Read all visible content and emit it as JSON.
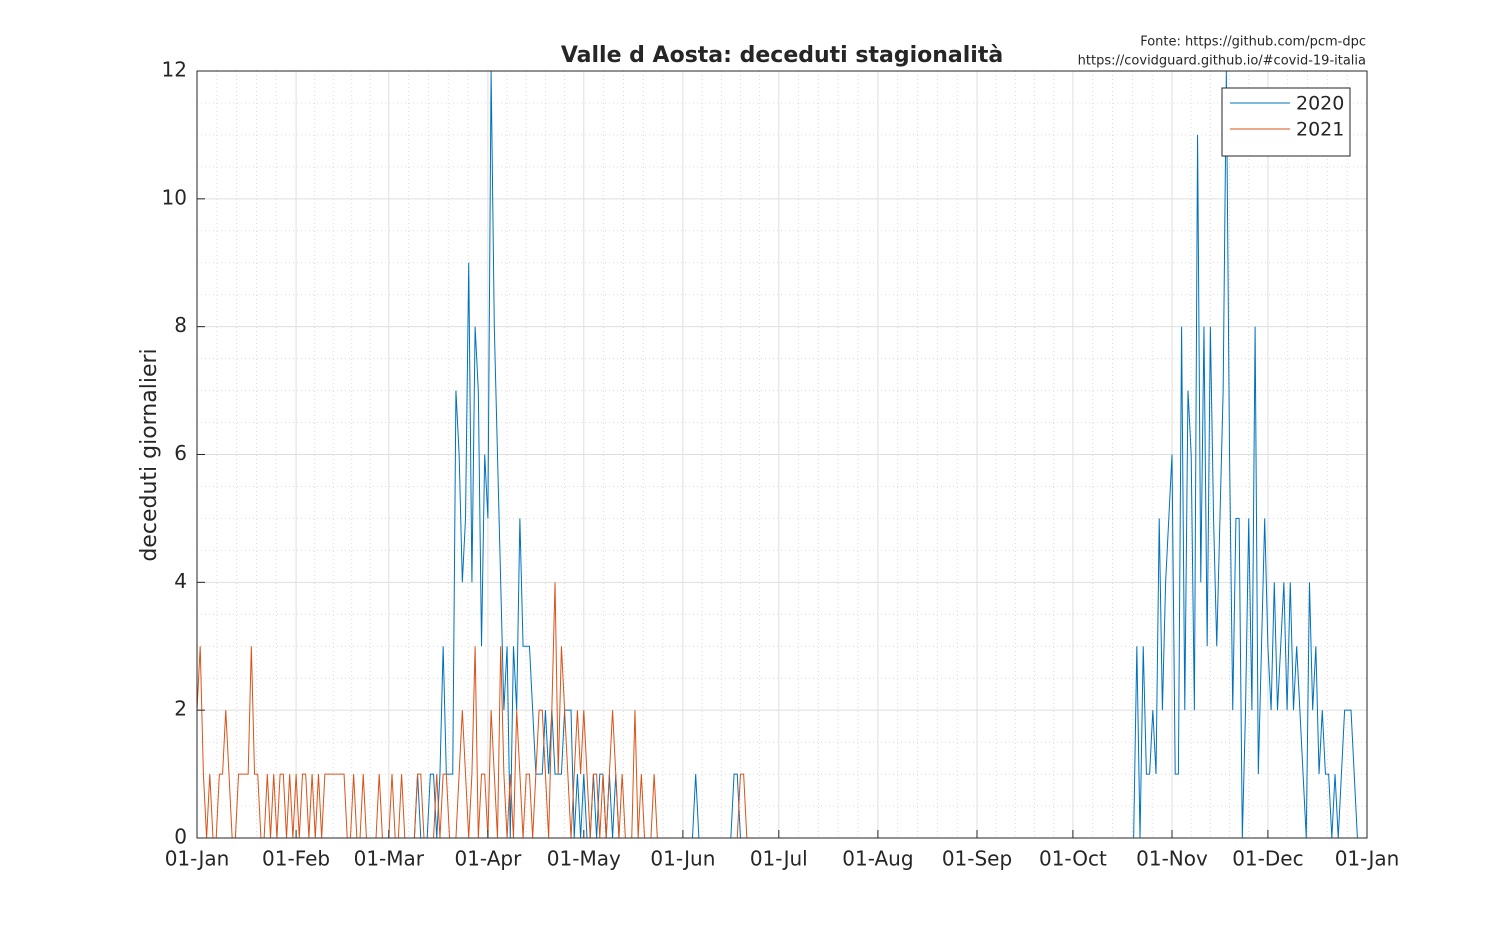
{
  "chart_data": {
    "type": "line",
    "title": "Valle d Aosta: deceduti stagionalità",
    "source": [
      "Fonte: https://github.com/pcm-dpc",
      "https://covidguard.github.io/#covid-19-italia"
    ],
    "ylabel": "deceduti giornalieri",
    "x": [
      0,
      1,
      2,
      3,
      4,
      5,
      6,
      7,
      8,
      9,
      10,
      11,
      12,
      13,
      14,
      15,
      16,
      17,
      18,
      19,
      20,
      21,
      22,
      23,
      24,
      25,
      26,
      27,
      28,
      29,
      30,
      31,
      32,
      33,
      34,
      35,
      36,
      37,
      38,
      39,
      40,
      41,
      42,
      43,
      44,
      45,
      46,
      47,
      48,
      49,
      50,
      51,
      52,
      53,
      54,
      55,
      56,
      57,
      58,
      59,
      60,
      61,
      62,
      63,
      64,
      65,
      66,
      67,
      68,
      69,
      70,
      71,
      72,
      73,
      74,
      75,
      76,
      77,
      78,
      79,
      80,
      81,
      82,
      83,
      84,
      85,
      86,
      87,
      88,
      89,
      90,
      91,
      92,
      93,
      94,
      95,
      96,
      97,
      98,
      99,
      100,
      101,
      102,
      103,
      104,
      105,
      106,
      107,
      108,
      109,
      110,
      111,
      112,
      113,
      114,
      115,
      116,
      117,
      118,
      119,
      120,
      121,
      122,
      123,
      124,
      125,
      126,
      127,
      128,
      129,
      130,
      131,
      132,
      133,
      134,
      135,
      136,
      137,
      138,
      139,
      140,
      141,
      142,
      143,
      144,
      145,
      146,
      147,
      148,
      149,
      150,
      151,
      152,
      153,
      154,
      155,
      156,
      157,
      158,
      159,
      160,
      161,
      162,
      163,
      164,
      165,
      166,
      167,
      168,
      169,
      170,
      171,
      172,
      173,
      174,
      175,
      176,
      177,
      178,
      179,
      180,
      181,
      182,
      183,
      184,
      185,
      186,
      187,
      188,
      189,
      190,
      191,
      192,
      193,
      194,
      195,
      196,
      197,
      198,
      199,
      200,
      201,
      202,
      203,
      204,
      205,
      206,
      207,
      208,
      209,
      210,
      211,
      212,
      213,
      214,
      215,
      216,
      217,
      218,
      219,
      220,
      221,
      222,
      223,
      224,
      225,
      226,
      227,
      228,
      229,
      230,
      231,
      232,
      233,
      234,
      235,
      236,
      237,
      238,
      239,
      240,
      241,
      242,
      243,
      244,
      245,
      246,
      247,
      248,
      249,
      250,
      251,
      252,
      253,
      254,
      255,
      256,
      257,
      258,
      259,
      260,
      261,
      262,
      263,
      264,
      265,
      266,
      267,
      268,
      269,
      270,
      271,
      272,
      273,
      274,
      275,
      276,
      277,
      278,
      279,
      280,
      281,
      282,
      283,
      284,
      285,
      286,
      287,
      288,
      289,
      290,
      291,
      292,
      293,
      294,
      295,
      296,
      297,
      298,
      299,
      300,
      301,
      302,
      303,
      304,
      305,
      306,
      307,
      308,
      309,
      310,
      311,
      312,
      313,
      314,
      315,
      316,
      317,
      318,
      319,
      320,
      321,
      322,
      323,
      324,
      325,
      326,
      327,
      328,
      329,
      330,
      331,
      332,
      333,
      334,
      335,
      336,
      337,
      338,
      339,
      340,
      341,
      342,
      343,
      344,
      345,
      346,
      347,
      348,
      349,
      350,
      351,
      352,
      353,
      354,
      355,
      356,
      357,
      358,
      359,
      360,
      361,
      362,
      363,
      364,
      365
    ],
    "series": [
      {
        "name": "2020",
        "color": "#0072bd",
        "values": [
          null,
          null,
          null,
          null,
          null,
          null,
          null,
          null,
          null,
          null,
          null,
          null,
          null,
          null,
          null,
          null,
          null,
          null,
          null,
          null,
          null,
          null,
          null,
          null,
          null,
          null,
          null,
          null,
          null,
          null,
          null,
          null,
          null,
          null,
          null,
          null,
          null,
          null,
          null,
          null,
          null,
          null,
          null,
          null,
          null,
          null,
          null,
          null,
          null,
          null,
          null,
          null,
          null,
          null,
          0,
          0,
          0,
          0,
          0,
          0,
          0,
          0,
          0,
          0,
          0,
          0,
          0,
          0,
          0,
          1,
          0,
          0,
          0,
          1,
          1,
          0,
          1,
          3,
          1,
          1,
          1,
          7,
          6,
          4,
          5,
          9,
          4,
          8,
          7,
          3,
          6,
          5,
          12,
          8,
          6,
          4,
          2,
          3,
          0,
          3,
          2,
          5,
          3,
          3,
          3,
          2,
          1,
          1,
          1,
          2,
          1,
          2,
          1,
          1,
          1,
          2,
          2,
          2,
          0,
          1,
          0,
          1,
          0,
          0,
          1,
          0,
          1,
          1,
          0,
          1,
          0,
          1,
          0,
          0,
          0,
          0,
          0,
          0,
          0,
          0,
          0,
          0,
          0,
          0,
          0,
          0,
          0,
          0,
          0,
          0,
          0,
          0,
          0,
          0,
          0,
          0,
          1,
          0,
          0,
          0,
          0,
          0,
          0,
          0,
          0,
          0,
          0,
          0,
          1,
          1,
          0,
          0,
          0,
          0,
          0,
          0,
          0,
          0,
          0,
          0,
          0,
          0,
          0,
          0,
          0,
          0,
          0,
          0,
          0,
          0,
          0,
          0,
          0,
          0,
          0,
          0,
          0,
          0,
          0,
          0,
          0,
          0,
          0,
          0,
          0,
          0,
          0,
          0,
          0,
          0,
          0,
          0,
          0,
          0,
          0,
          0,
          0,
          0,
          0,
          0,
          0,
          0,
          0,
          0,
          0,
          0,
          0,
          0,
          0,
          0,
          0,
          0,
          0,
          0,
          0,
          0,
          0,
          0,
          0,
          0,
          0,
          0,
          0,
          0,
          0,
          0,
          0,
          0,
          0,
          0,
          0,
          0,
          0,
          0,
          0,
          0,
          0,
          0,
          0,
          0,
          0,
          0,
          0,
          0,
          0,
          0,
          0,
          0,
          0,
          0,
          0,
          0,
          0,
          0,
          0,
          0,
          0,
          0,
          0,
          0,
          0,
          0,
          0,
          0,
          0,
          0,
          0,
          0,
          0,
          0,
          0,
          0,
          0,
          0,
          3,
          0,
          3,
          1,
          1,
          2,
          1,
          5,
          2,
          4,
          5,
          6,
          1,
          1,
          8,
          2,
          7,
          6,
          2,
          11,
          4,
          8,
          3,
          8,
          5,
          3,
          5,
          7,
          12,
          6,
          2,
          5,
          5,
          0,
          2,
          5,
          2,
          8,
          1,
          3,
          5,
          3,
          2,
          4,
          2,
          3,
          4,
          2,
          4,
          2,
          3,
          2,
          1,
          0,
          4,
          2,
          3,
          1,
          2,
          1,
          1,
          0,
          1,
          0,
          1,
          2,
          2,
          2,
          1,
          0,
          0,
          0
        ]
      },
      {
        "name": "2021",
        "color": "#d95319",
        "values": [
          2,
          3,
          1,
          0,
          1,
          0,
          0,
          1,
          1,
          2,
          1,
          0,
          0,
          1,
          1,
          1,
          1,
          3,
          1,
          1,
          0,
          0,
          1,
          0,
          1,
          0,
          1,
          1,
          0,
          1,
          0,
          1,
          0,
          1,
          1,
          0,
          1,
          0,
          1,
          0,
          1,
          1,
          1,
          1,
          1,
          1,
          1,
          0,
          0,
          1,
          0,
          0,
          1,
          0,
          0,
          0,
          0,
          1,
          0,
          0,
          0,
          1,
          0,
          0,
          1,
          0,
          0,
          0,
          0,
          1,
          1,
          0,
          0,
          0,
          0,
          1,
          0,
          1,
          1,
          0,
          0,
          0,
          1,
          2,
          1,
          0,
          1,
          3,
          0,
          1,
          1,
          0,
          2,
          1,
          0,
          3,
          1,
          0,
          1,
          0,
          2,
          1,
          0,
          1,
          1,
          0,
          1,
          2,
          2,
          1,
          0,
          2,
          4,
          1,
          3,
          2,
          1,
          0,
          1,
          2,
          1,
          2,
          1,
          0,
          1,
          1,
          0,
          1,
          0,
          1,
          2,
          1,
          0,
          1,
          0,
          0,
          0,
          2,
          0,
          1,
          0,
          0,
          0,
          1,
          0,
          0,
          0,
          0,
          0,
          0,
          0,
          0,
          0,
          0,
          0,
          0,
          0,
          0,
          0,
          0,
          0,
          0,
          0,
          0,
          0,
          0,
          0,
          0,
          0,
          0,
          1,
          1,
          0,
          0,
          0,
          0,
          0,
          0,
          0,
          0,
          0,
          0,
          0,
          0,
          0,
          0,
          0,
          0,
          0,
          null,
          null,
          null,
          null,
          null,
          null,
          null,
          null,
          null,
          null,
          null,
          null,
          null,
          null,
          null,
          null,
          null,
          null,
          null,
          null,
          null,
          null,
          null,
          null,
          null,
          null,
          null,
          null,
          null,
          null,
          null,
          null,
          null,
          null,
          null,
          null,
          null,
          null,
          null,
          null,
          null,
          null,
          null,
          null,
          null,
          null,
          null,
          null,
          null,
          null,
          null,
          null,
          null,
          null,
          null,
          null,
          null,
          null,
          null,
          null,
          null,
          null,
          null,
          null,
          null,
          null,
          null,
          null,
          null,
          null,
          null,
          null,
          null,
          null,
          null,
          null,
          null,
          null,
          null,
          null,
          null,
          null,
          null,
          null,
          null,
          null,
          null,
          null,
          null,
          null,
          null,
          null,
          null,
          null,
          null,
          null,
          null,
          null,
          null,
          null,
          null,
          null,
          null,
          null,
          null,
          null,
          null,
          null,
          null,
          null,
          null,
          null,
          null,
          null,
          null,
          null,
          null,
          null,
          null,
          null,
          null,
          null,
          null,
          null,
          null,
          null,
          null,
          null,
          null,
          null,
          null,
          null,
          null,
          null,
          null,
          null,
          null,
          null,
          null,
          null,
          null,
          null,
          null,
          null,
          null,
          null,
          null,
          null,
          null,
          null,
          null,
          null,
          null,
          null,
          null,
          null,
          null,
          null,
          null,
          null,
          null,
          null,
          null,
          null,
          null,
          null,
          null,
          null,
          null,
          null,
          null,
          null,
          null,
          null,
          null,
          null,
          null
        ]
      }
    ],
    "xlim": [
      0,
      366
    ],
    "xticks": [
      {
        "value": 0,
        "label": "01-Jan"
      },
      {
        "value": 31,
        "label": "01-Feb"
      },
      {
        "value": 60,
        "label": "01-Mar"
      },
      {
        "value": 91,
        "label": "01-Apr"
      },
      {
        "value": 121,
        "label": "01-May"
      },
      {
        "value": 152,
        "label": "01-Jun"
      },
      {
        "value": 182,
        "label": "01-Jul"
      },
      {
        "value": 213,
        "label": "01-Aug"
      },
      {
        "value": 244,
        "label": "01-Sep"
      },
      {
        "value": 274,
        "label": "01-Oct"
      },
      {
        "value": 305,
        "label": "01-Nov"
      },
      {
        "value": 335,
        "label": "01-Dec"
      },
      {
        "value": 366,
        "label": "01-Jan"
      }
    ],
    "ylim": [
      0,
      12
    ],
    "yticks": [
      0,
      2,
      4,
      6,
      8,
      10,
      12
    ],
    "grid": true,
    "minor_grid": true,
    "legend": "northeast"
  }
}
